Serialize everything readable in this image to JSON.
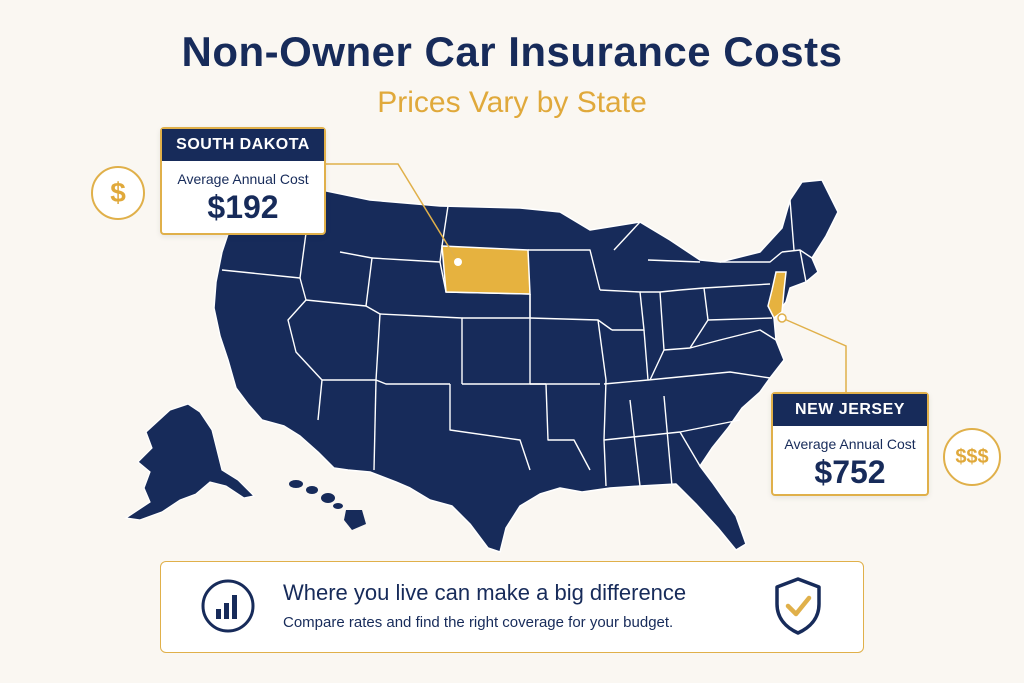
{
  "header": {
    "title": "Non-Owner Car Insurance Costs",
    "subtitle": "Prices Vary by State"
  },
  "callouts": {
    "south_dakota": {
      "state": "SOUTH DAKOTA",
      "caption": "Average Annual Cost",
      "value": "$192"
    },
    "new_jersey": {
      "state": "NEW JERSEY",
      "caption": "Average Annual Cost",
      "value": "$752"
    }
  },
  "badges": {
    "low": "$",
    "high": "$$$"
  },
  "banner": {
    "headline": "Where you live can make a big difference",
    "subtext": "Compare rates and find the right coverage for your budget."
  },
  "colors": {
    "navy": "#172b5a",
    "gold": "#e0b04a",
    "background": "#faf7f2"
  },
  "icons": [
    "dollar-icon",
    "triple-dollar-icon",
    "bar-chart-icon",
    "shield-check-icon"
  ]
}
